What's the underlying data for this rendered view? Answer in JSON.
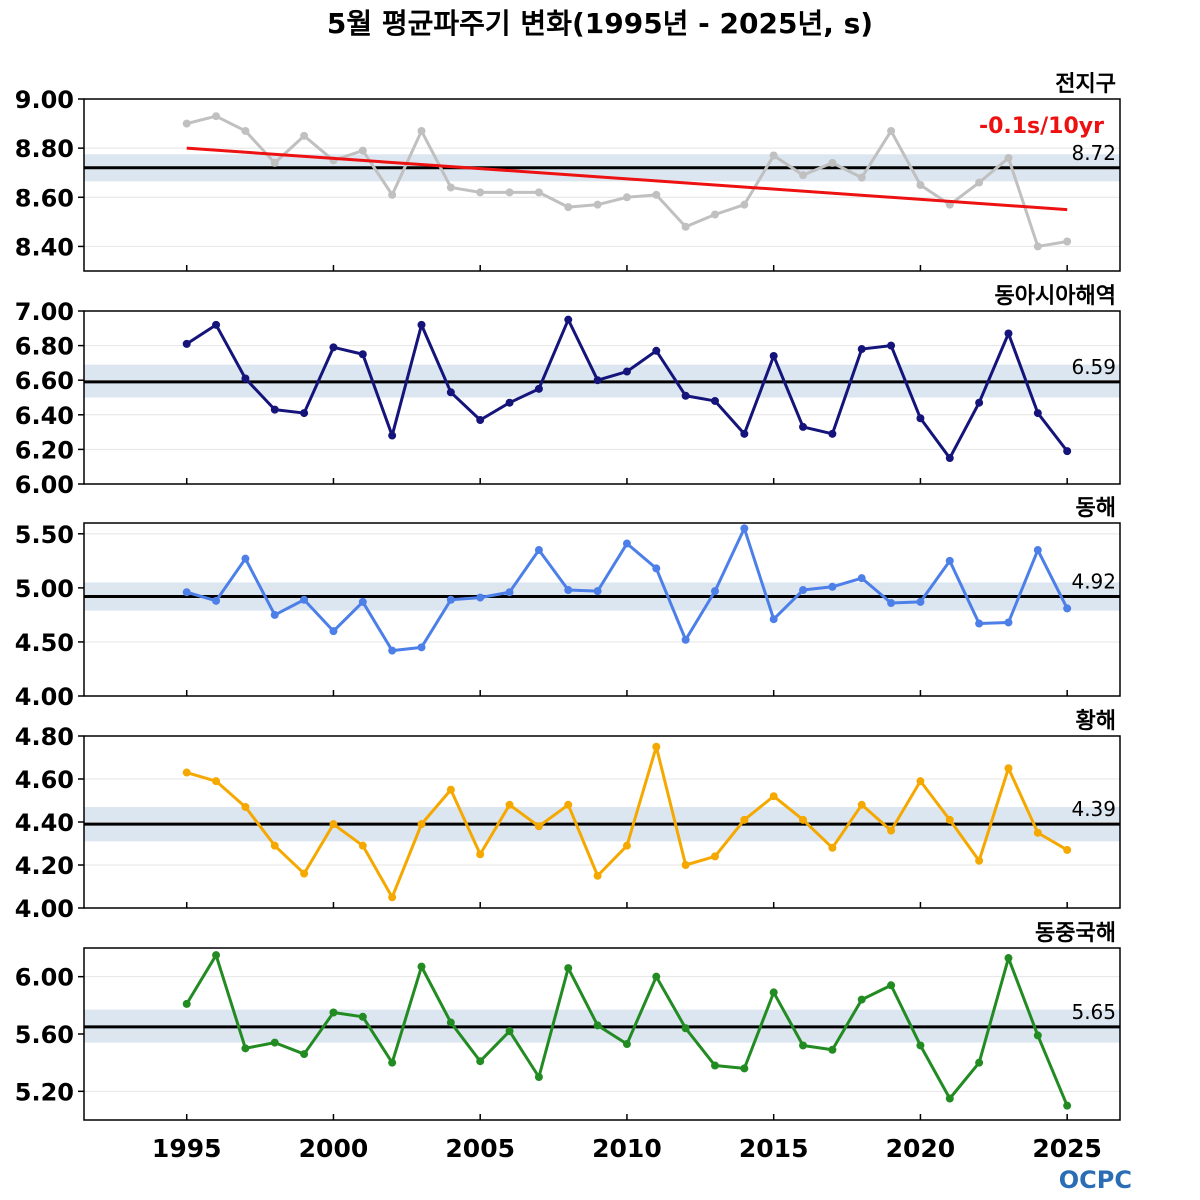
{
  "title": "5월 평균파주기 변화(1995년 - 2025년, s)",
  "logo": "OCPC",
  "colors": {
    "trend": "#ee1111",
    "mean_line": "#000000",
    "band": "#dce6f1",
    "logo": "#2a6db5"
  },
  "chart_data": {
    "type": "line",
    "title": "5월 평균파주기 변화(1995년 - 2025년, s)",
    "x": [
      1995,
      1996,
      1997,
      1998,
      1999,
      2000,
      2001,
      2002,
      2003,
      2004,
      2005,
      2006,
      2007,
      2008,
      2009,
      2010,
      2011,
      2012,
      2013,
      2014,
      2015,
      2016,
      2017,
      2018,
      2019,
      2020,
      2021,
      2022,
      2023,
      2024,
      2025
    ],
    "xticks": [
      "1995",
      "2000",
      "2005",
      "2010",
      "2015",
      "2020",
      "2025"
    ],
    "xlim": [
      1991.5,
      2026.8
    ],
    "panels": [
      {
        "name": "전지구",
        "color": "#c0c0c0",
        "mean": 8.72,
        "mean_label": "8.72",
        "band": [
          8.665,
          8.775
        ],
        "ylim": [
          8.3,
          9.0
        ],
        "yticks": [
          "8.40",
          "8.60",
          "8.80",
          "9.00"
        ],
        "trend_label": "-0.1s/10yr",
        "trend": [
          8.8,
          8.55
        ],
        "values": [
          8.9,
          8.93,
          8.87,
          8.74,
          8.85,
          8.75,
          8.79,
          8.61,
          8.87,
          8.64,
          8.62,
          8.62,
          8.62,
          8.56,
          8.57,
          8.6,
          8.61,
          8.48,
          8.53,
          8.57,
          8.77,
          8.69,
          8.74,
          8.68,
          8.87,
          8.65,
          8.57,
          8.66,
          8.76,
          8.4,
          8.42
        ]
      },
      {
        "name": "동아시아해역",
        "color": "#14147a",
        "mean": 6.59,
        "mean_label": "6.59",
        "band": [
          6.5,
          6.69
        ],
        "ylim": [
          6.0,
          7.0
        ],
        "yticks": [
          "6.00",
          "6.20",
          "6.40",
          "6.60",
          "6.80",
          "7.00"
        ],
        "values": [
          6.81,
          6.92,
          6.61,
          6.43,
          6.41,
          6.79,
          6.75,
          6.28,
          6.92,
          6.53,
          6.37,
          6.47,
          6.55,
          6.95,
          6.6,
          6.65,
          6.77,
          6.51,
          6.48,
          6.29,
          6.74,
          6.33,
          6.29,
          6.78,
          6.8,
          6.38,
          6.15,
          6.47,
          6.87,
          6.41,
          6.19
        ]
      },
      {
        "name": "동해",
        "color": "#4d7fe8",
        "mean": 4.92,
        "mean_label": "4.92",
        "band": [
          4.79,
          5.05
        ],
        "ylim": [
          4.0,
          5.6
        ],
        "yticks": [
          "4.00",
          "4.50",
          "5.00",
          "5.50"
        ],
        "values": [
          4.96,
          4.88,
          5.27,
          4.75,
          4.89,
          4.6,
          4.87,
          4.42,
          4.45,
          4.89,
          4.91,
          4.96,
          5.35,
          4.98,
          4.97,
          5.41,
          5.18,
          4.52,
          4.97,
          5.55,
          4.71,
          4.98,
          5.01,
          5.09,
          4.86,
          4.87,
          5.25,
          4.67,
          4.68,
          5.35,
          4.81
        ]
      },
      {
        "name": "황해",
        "color": "#f5a800",
        "mean": 4.39,
        "mean_label": "4.39",
        "band": [
          4.31,
          4.47
        ],
        "ylim": [
          4.0,
          4.8
        ],
        "yticks": [
          "4.00",
          "4.20",
          "4.40",
          "4.60",
          "4.80"
        ],
        "values": [
          4.63,
          4.59,
          4.47,
          4.29,
          4.16,
          4.39,
          4.29,
          4.05,
          4.39,
          4.55,
          4.25,
          4.48,
          4.38,
          4.48,
          4.15,
          4.29,
          4.75,
          4.2,
          4.24,
          4.41,
          4.52,
          4.41,
          4.28,
          4.48,
          4.36,
          4.59,
          4.41,
          4.22,
          4.65,
          4.35,
          4.27
        ]
      },
      {
        "name": "동중국해",
        "color": "#228b22",
        "mean": 5.65,
        "mean_label": "5.65",
        "band": [
          5.54,
          5.77
        ],
        "ylim": [
          5.0,
          6.2
        ],
        "yticks": [
          "5.20",
          "5.60",
          "6.00"
        ],
        "values": [
          5.81,
          6.15,
          5.5,
          5.54,
          5.46,
          5.75,
          5.72,
          5.4,
          6.07,
          5.68,
          5.41,
          5.62,
          5.3,
          6.06,
          5.66,
          5.53,
          6.0,
          5.64,
          5.38,
          5.36,
          5.89,
          5.52,
          5.49,
          5.84,
          5.94,
          5.52,
          5.15,
          5.4,
          6.13,
          5.59,
          5.1
        ]
      }
    ]
  }
}
